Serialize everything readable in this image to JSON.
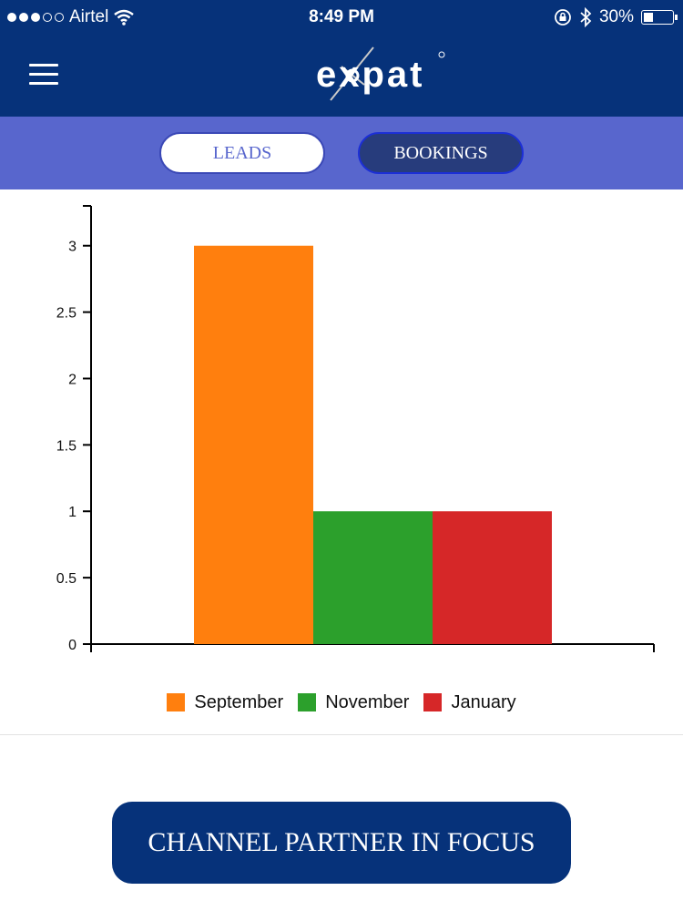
{
  "status_bar": {
    "carrier": "Airtel",
    "time": "8:49 PM",
    "battery": "30%",
    "battery_level": 0.3,
    "icons": [
      "signal-icon",
      "wifi-icon",
      "orientation-lock-icon",
      "bluetooth-icon",
      "battery-icon"
    ]
  },
  "header": {
    "logo_text": "expat",
    "menu_icon": "hamburger-menu-icon"
  },
  "tabs": [
    {
      "label": "LEADS",
      "active": false
    },
    {
      "label": "BOOKINGS",
      "active": true
    }
  ],
  "chart_data": {
    "type": "bar",
    "categories": [
      "September",
      "November",
      "January"
    ],
    "values": [
      3,
      1,
      1
    ],
    "colors": [
      "#ff7f0e",
      "#2ca02c",
      "#d62728"
    ],
    "yticks": [
      "0",
      "0.5",
      "1",
      "1.5",
      "2",
      "2.5",
      "3"
    ],
    "ylim": [
      0,
      3.3
    ],
    "grid": false,
    "legend": "bottom"
  },
  "legend": [
    {
      "label": "September",
      "color": "#ff7f0e"
    },
    {
      "label": "November",
      "color": "#2ca02c"
    },
    {
      "label": "January",
      "color": "#d62728"
    }
  ],
  "cta": {
    "label": "CHANNEL PARTNER IN FOCUS"
  }
}
